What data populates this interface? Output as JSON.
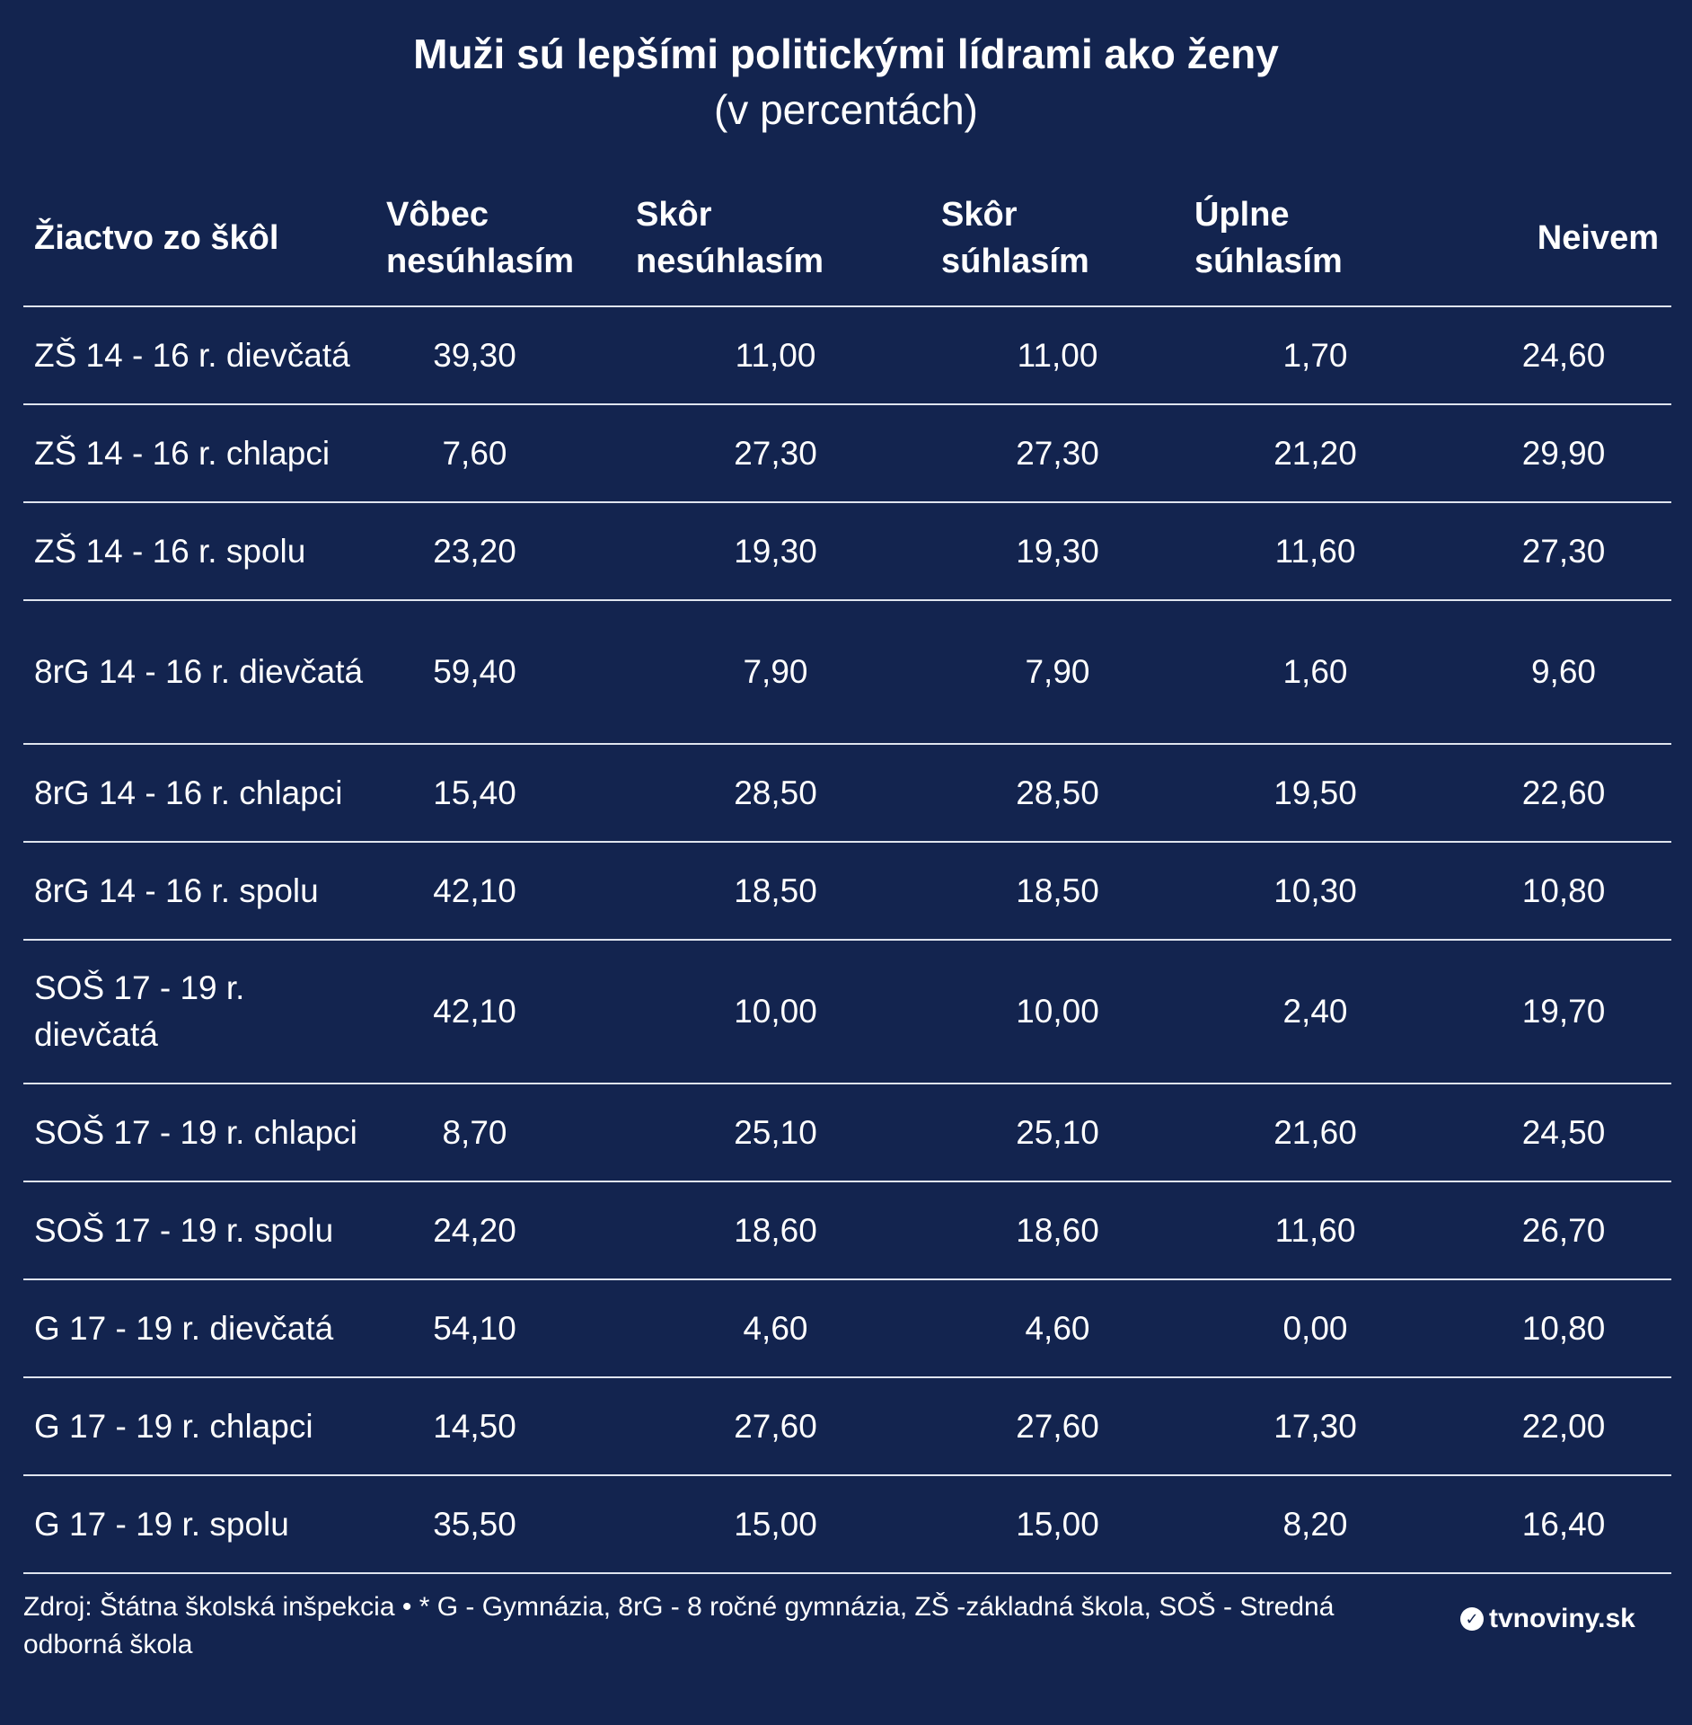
{
  "title": "Muži sú lepšími politickými lídrami ako ženy",
  "subtitle": "(v percentách)",
  "chart_data": {
    "type": "table",
    "title": "Muži sú lepšími politickými lídrami ako ženy",
    "subtitle": "(v percentách)",
    "columns": [
      "Žiactvo zo škôl",
      "Vôbec nesúhlasím",
      "Skôr nesúhlasím",
      "Skôr súhlasím",
      "Úplne súhlasím",
      "Neivem"
    ],
    "rows": [
      [
        "ZŠ 14 - 16 r. dievčatá",
        "39,30",
        "11,00",
        "11,00",
        "1,70",
        "24,60"
      ],
      [
        "ZŠ 14 - 16 r. chlapci",
        "7,60",
        "27,30",
        "27,30",
        "21,20",
        "29,90"
      ],
      [
        "ZŠ 14 - 16 r. spolu",
        "23,20",
        "19,30",
        "19,30",
        "11,60",
        "27,30"
      ],
      [
        "8rG 14 - 16 r. dievčatá",
        "59,40",
        "7,90",
        "7,90",
        "1,60",
        "9,60"
      ],
      [
        "8rG 14 - 16 r. chlapci",
        "15,40",
        "28,50",
        "28,50",
        "19,50",
        "22,60"
      ],
      [
        "8rG 14 - 16 r. spolu",
        "42,10",
        "18,50",
        "18,50",
        "10,30",
        "10,80"
      ],
      [
        "SOŠ 17 - 19 r. dievčatá",
        "42,10",
        "10,00",
        "10,00",
        "2,40",
        "19,70"
      ],
      [
        "SOŠ 17 - 19 r. chlapci",
        "8,70",
        "25,10",
        "25,10",
        "21,60",
        "24,50"
      ],
      [
        "SOŠ 17 - 19 r. spolu",
        "24,20",
        "18,60",
        "18,60",
        "11,60",
        "26,70"
      ],
      [
        "G 17 - 19 r. dievčatá",
        "54,10",
        "4,60",
        "4,60",
        "0,00",
        "10,80"
      ],
      [
        "G 17 - 19 r. chlapci",
        "14,50",
        "27,60",
        "27,60",
        "17,30",
        "22,00"
      ],
      [
        "G 17 - 19 r. spolu",
        "35,50",
        "15,00",
        "15,00",
        "8,20",
        "16,40"
      ]
    ]
  },
  "header": {
    "col0": "Žiactvo zo škôl",
    "col1_line1": "Vôbec",
    "col1_line2": "nesúhlasím",
    "col2_line1": "Skôr",
    "col2_line2": "nesúhlasím",
    "col3_line1": "Skôr",
    "col3_line2": "súhlasím",
    "col4_line1": "Úplne",
    "col4_line2": "súhlasím",
    "col5": "Neivem"
  },
  "footer": {
    "source": "Zdroj: Štátna školská inšpekcia • * G - Gymnázia, 8rG - 8 ročné gymnázia, ZŠ -základná škola, SOŠ - Stredná odborná škola",
    "logo_text": "tvnoviny.sk"
  },
  "colors": {
    "background": "#13244f",
    "text": "#ffffff",
    "rule": "#dfe4ee"
  }
}
